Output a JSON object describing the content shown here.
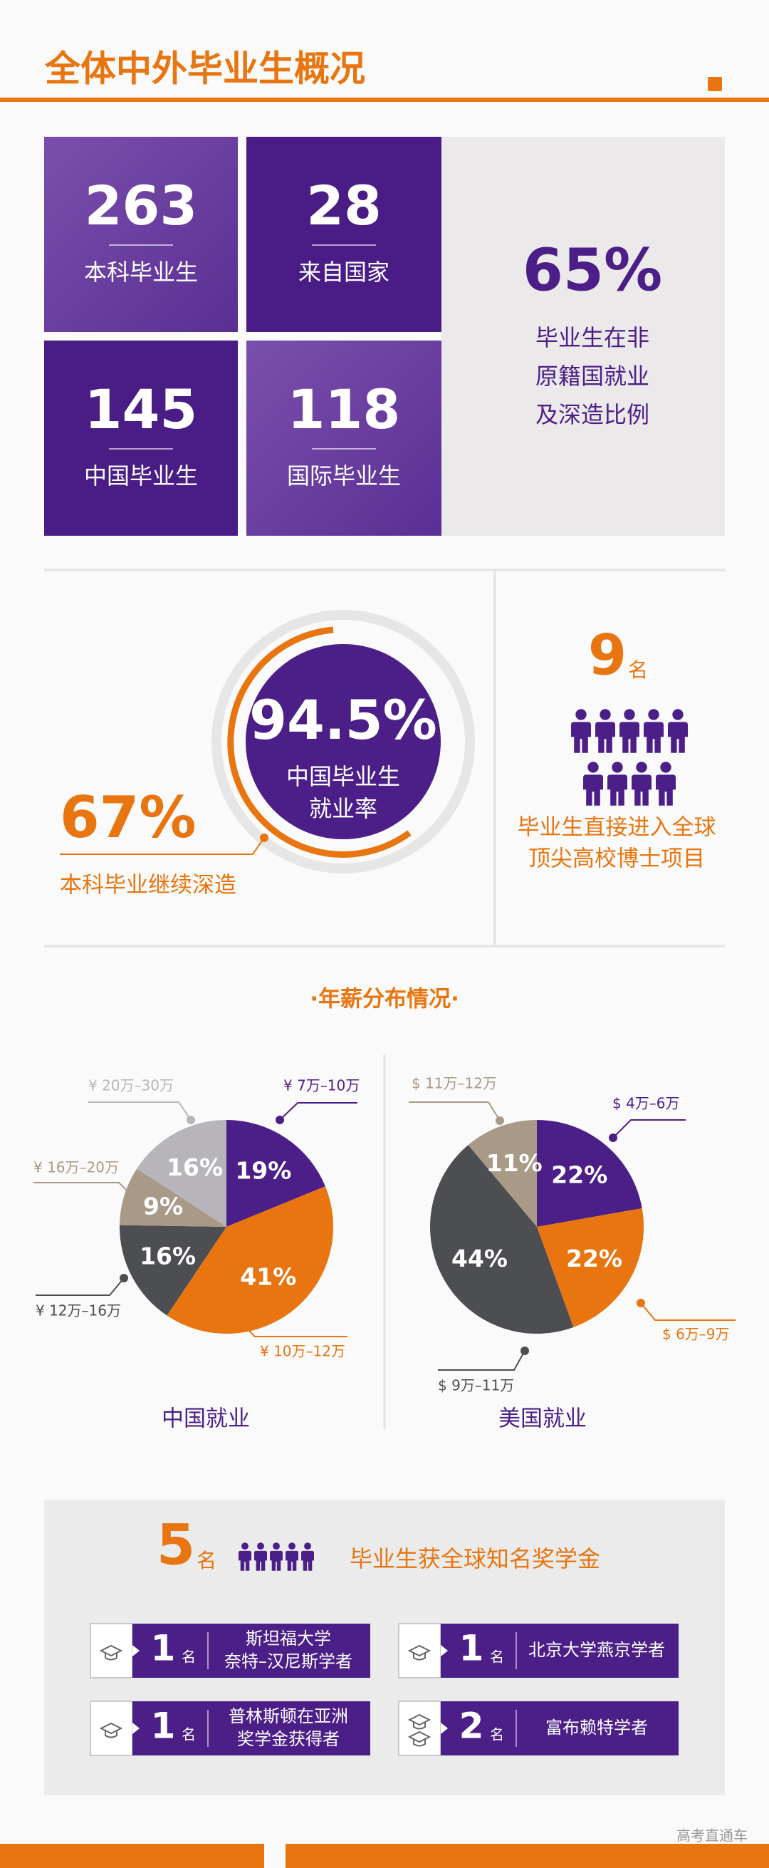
{
  "header": {
    "title": "全体中外毕业生概况"
  },
  "stats": [
    {
      "value": 263,
      "label": "本科毕业生"
    },
    {
      "value": 28,
      "label": "来自国家"
    },
    {
      "value": 145,
      "label": "中国毕业生"
    },
    {
      "value": 118,
      "label": "国际毕业生"
    }
  ],
  "overseas": {
    "value": "65%",
    "lines": [
      "毕业生在非",
      "原籍国就业",
      "及深造比例"
    ]
  },
  "employment": {
    "rate": "94.5%",
    "rate_lines": [
      "中国毕业生",
      "就业率"
    ],
    "further_study": "67%",
    "further_study_label": "本科毕业继续深造"
  },
  "phd": {
    "count": 9,
    "unit": "名",
    "lines": [
      "毕业生直接进入全球",
      "顶尖高校博士项目"
    ]
  },
  "salary": {
    "title": "·年薪分布情况·",
    "charts": [
      {
        "type": "pie",
        "title": "中国就业",
        "categories": [
          "¥ 7万–10万",
          "¥ 10万–12万",
          "¥ 12万–16万",
          "¥ 16万–20万",
          "¥ 20万–30万"
        ],
        "values": [
          19,
          41,
          16,
          9,
          16
        ],
        "value_labels": [
          "19%",
          "41%",
          "16%",
          "9%",
          "16%"
        ],
        "colors": [
          "#4b1f87",
          "#e8750f",
          "#4d4e52",
          "#a89a87",
          "#b7b5b9"
        ]
      },
      {
        "type": "pie",
        "title": "美国就业",
        "categories": [
          "$ 4万–6万",
          "$ 6万–9万",
          "$ 9万–11万",
          "$ 11万–12万"
        ],
        "values": [
          22,
          22,
          44,
          11
        ],
        "value_labels": [
          "22%",
          "22%",
          "44%",
          "11%"
        ],
        "colors": [
          "#4b1f87",
          "#e8750f",
          "#4d4e52",
          "#a89a87"
        ]
      }
    ]
  },
  "scholarships": {
    "count": 5,
    "unit": "名",
    "label": "毕业生获全球知名奖学金",
    "items": [
      {
        "count": 1,
        "unit": "名",
        "lines": [
          "斯坦福大学",
          "奈特–汉尼斯学者"
        ]
      },
      {
        "count": 1,
        "unit": "名",
        "lines": [
          "北京大学燕京学者"
        ]
      },
      {
        "count": 1,
        "unit": "名",
        "lines": [
          "普林斯顿在亚洲",
          "奖学金获得者"
        ]
      },
      {
        "count": 2,
        "unit": "名",
        "lines": [
          "富布赖特学者"
        ]
      }
    ]
  },
  "footer": {
    "watermark": "高考直通车"
  }
}
